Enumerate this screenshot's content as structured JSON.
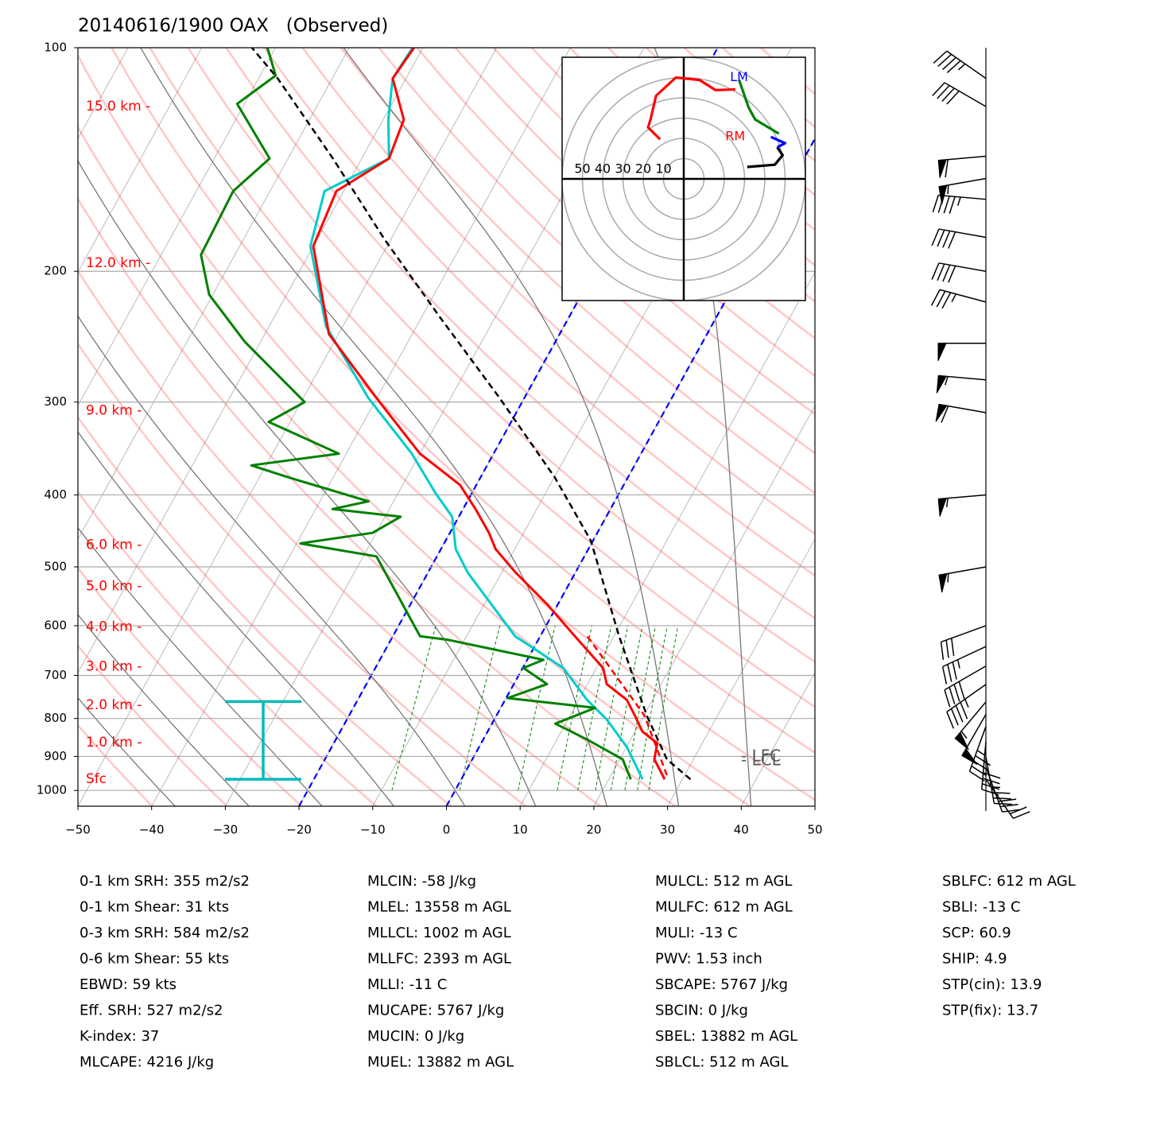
{
  "chart_data": {
    "type": "skewt",
    "title": "20140616/1900 OAX   (Observed)",
    "xlim": [
      -50,
      50
    ],
    "xticks": [
      {
        "value": -50,
        "label": "−50"
      },
      {
        "value": -40,
        "label": "−40"
      },
      {
        "value": -30,
        "label": "−30"
      },
      {
        "value": -20,
        "label": "−20"
      },
      {
        "value": -10,
        "label": "−10"
      },
      0,
      10,
      20,
      30,
      40,
      50
    ],
    "ylim": [
      1050,
      100
    ],
    "yticks": [
      100,
      200,
      300,
      400,
      500,
      600,
      700,
      800,
      900,
      1000
    ],
    "log_y": true,
    "grid": true,
    "series": [
      {
        "color": "#00cccc",
        "style": "solid",
        "pressure": [
          966,
          875,
          803,
          755,
          684,
          620,
          509,
          473,
          428,
          398,
          352,
          296,
          237,
          185,
          156,
          141,
          125,
          110,
          100
        ],
        "values": [
          24.6,
          20.1,
          15.3,
          11.1,
          5.5,
          -3.4,
          -14.6,
          -18.0,
          -20.9,
          -24.9,
          -31.1,
          -41.2,
          -52.3,
          -60.4,
          -62.6,
          -56.3,
          -59.3,
          -61.8,
          -61.4
        ]
      },
      {
        "color": "#ff0000",
        "style": "dashed",
        "pressure": [
          954,
          793,
          620
        ],
        "values": [
          27.6,
          20.1,
          6.4
        ]
      },
      {
        "color": "#ff0000",
        "style": "solid",
        "pressure": [
          966,
          908,
          864,
          833,
          793,
          755,
          719,
          684,
          620,
          562,
          509,
          473,
          450,
          418,
          388,
          352,
          296,
          243,
          185,
          156,
          141,
          125,
          110,
          100
        ],
        "values": [
          27.6,
          24.7,
          23.9,
          21.0,
          18.8,
          16.5,
          12.6,
          10.9,
          4.7,
          -1.4,
          -8.1,
          -12.6,
          -14.7,
          -18.3,
          -22.2,
          -30.0,
          -40.1,
          -51.3,
          -60.0,
          -61.0,
          -56.3,
          -57.2,
          -61.8,
          -61.2
        ]
      },
      {
        "color": "#008000",
        "style": "solid",
        "pressure": [
          966,
          908,
          854,
          813,
          774,
          751,
          719,
          684,
          667,
          627,
          620,
          484,
          465,
          450,
          428,
          418,
          408,
          379,
          365,
          352,
          319,
          300,
          249,
          215,
          190,
          156,
          141,
          119,
          109,
          100
        ],
        "values": [
          23.0,
          20.4,
          14.1,
          8.6,
          12.8,
          0.2,
          4.5,
          0.1,
          2.2,
          -12.2,
          -16.3,
          -28.2,
          -39.5,
          -30.5,
          -27.9,
          -37.7,
          -33.4,
          -46.0,
          -52.0,
          -41.0,
          -52.9,
          -49.5,
          -62.1,
          -70.5,
          -74.6,
          -75.0,
          -72.5,
          -81.0,
          -77.9,
          -81.1
        ]
      },
      {
        "color": "#000000",
        "style": "dashed",
        "pressure": [
          966,
          908,
          793,
          620,
          461,
          379,
          296,
          231,
          181,
          141,
          110,
          100
        ],
        "values": [
          31.1,
          26.4,
          20.4,
          10.7,
          -0.3,
          -9.9,
          -23.4,
          -37.4,
          -50.9,
          -63.9,
          -77.4,
          -83.2
        ]
      }
    ],
    "highlight_isotherms": {
      "color": "#0000ff",
      "values": [
        -20,
        0
      ]
    },
    "height_labels": {
      "color": "#ff0000",
      "labels": [
        "15.0 km -",
        "12.0 km -",
        "9.0 km -",
        "6.0 km -",
        "5.0 km -",
        "4.0 km -",
        "3.0 km -",
        "2.0 km -",
        "1.0 km -",
        "Sfc"
      ],
      "pressure": [
        120,
        195,
        308,
        467,
        531,
        602,
        681,
        768,
        862,
        966
      ]
    },
    "level_labels": {
      "color": "#555555",
      "labels": [
        "- LFC",
        "- LCL"
      ],
      "pressure": [
        901,
        912
      ]
    },
    "effective_inflow_layer": {
      "color": "#00bbbb",
      "pressure": [
        966,
        759
      ]
    },
    "winds": {
      "pressure": [
        966,
        930,
        900,
        860,
        820,
        790,
        760,
        720,
        680,
        640,
        600,
        500,
        400,
        310,
        280,
        250,
        220,
        200,
        180,
        160,
        150,
        140,
        120,
        110
      ],
      "direction": [
        145,
        160,
        170,
        185,
        200,
        210,
        220,
        235,
        240,
        245,
        250,
        260,
        265,
        280,
        275,
        270,
        285,
        280,
        280,
        275,
        260,
        265,
        300,
        305
      ],
      "speed": [
        20,
        30,
        35,
        40,
        45,
        50,
        55,
        45,
        40,
        35,
        30,
        55,
        55,
        60,
        55,
        50,
        35,
        40,
        40,
        45,
        55,
        60,
        40,
        45
      ]
    },
    "hodograph": {
      "lim": [
        -60,
        60
      ],
      "rings": [
        50,
        40,
        30,
        20,
        10
      ],
      "segments": [
        {
          "color": "#000000",
          "u": [
            31.3,
            44.9,
            48.8,
            46.1
          ],
          "v": [
            5.9,
            7.0,
            11.7,
            15.6
          ]
        },
        {
          "color": "#0000ff",
          "u": [
            46.1,
            50.0,
            43.0
          ],
          "v": [
            15.6,
            17.6,
            20.7
          ]
        },
        {
          "color": "#008000",
          "u": [
            46.9,
            35.2,
            32.0,
            29.3,
            27.3
          ],
          "v": [
            22.3,
            29.3,
            35.2,
            43.0,
            48.8
          ]
        },
        {
          "color": "#ff0000",
          "u": [
            25.4,
            15.6,
            7.8,
            -3.9,
            -13.7,
            -16.4,
            -17.6,
            -11.7
          ],
          "v": [
            44.1,
            43.8,
            48.8,
            50.0,
            41.0,
            29.3,
            25.4,
            19.5
          ]
        }
      ],
      "annotations": [
        {
          "label": "LM",
          "color": "#0000ff",
          "u": 27.3,
          "v": 50.0
        },
        {
          "label": "RM",
          "color": "#ff0000",
          "u": 25.4,
          "v": 20.7
        }
      ]
    }
  },
  "stats": {
    "columns": [
      [
        "0-1 km SRH: 355 m2/s2",
        "0-1 km Shear: 31 kts",
        "0-3 km SRH: 584 m2/s2",
        "0-6 km Shear: 55 kts",
        "EBWD: 59 kts",
        "Eff. SRH: 527 m2/s2",
        "K-index: 37",
        "MLCAPE: 4216 J/kg"
      ],
      [
        "MLCIN: -58 J/kg",
        "MLEL: 13558 m AGL",
        "MLLCL: 1002 m AGL",
        "MLLFC: 2393 m AGL",
        "MLLI: -11 C",
        "MUCAPE: 5767 J/kg",
        "MUCIN: 0 J/kg",
        "MUEL: 13882 m AGL"
      ],
      [
        "MULCL: 512 m AGL",
        "MULFC: 612 m AGL",
        "MULI: -13 C",
        "PWV: 1.53 inch",
        "SBCAPE: 5767 J/kg",
        "SBCIN: 0 J/kg",
        "SBEL: 13882 m AGL",
        "SBLCL: 512 m AGL"
      ],
      [
        "SBLFC: 612 m AGL",
        "SBLI: -13 C",
        "SCP: 60.9",
        "SHIP: 4.9",
        "STP(cin): 13.9",
        "STP(fix): 13.7"
      ]
    ]
  }
}
